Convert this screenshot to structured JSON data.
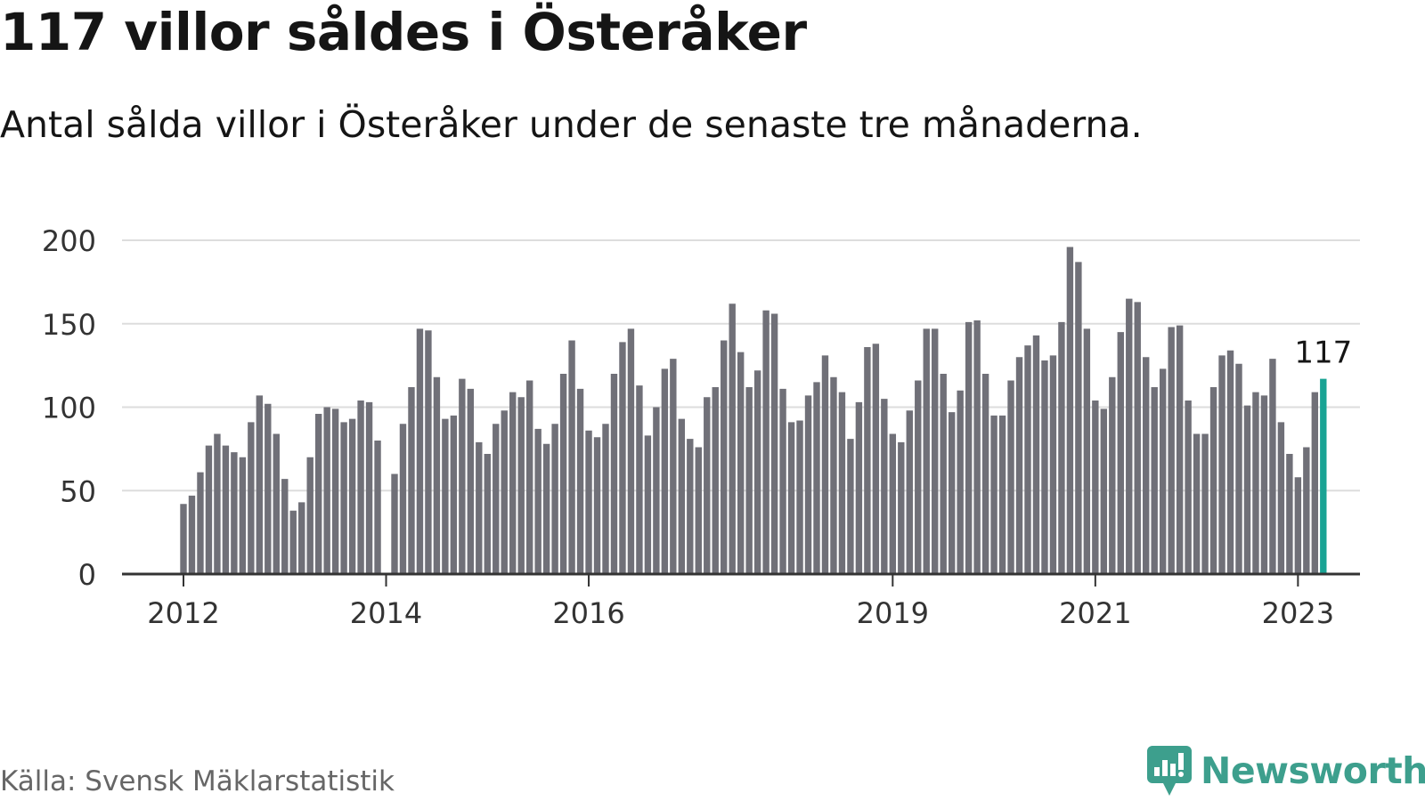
{
  "title": "117 villor såldes i Österåker",
  "subtitle": "Antal sålda villor i Österåker under de senaste tre månaderna.",
  "source": "Källa: Svensk Mäklarstatistik",
  "brand": "Newsworthy",
  "colors": {
    "bar": "#707078",
    "highlight": "#19a394",
    "grid": "#dddddd",
    "axis": "#333333",
    "brand": "#3d9f8d"
  },
  "chart_data": {
    "type": "bar",
    "title": "117 villor såldes i Österåker",
    "xlabel": "",
    "ylabel": "",
    "ylim": [
      0,
      200
    ],
    "yticks": [
      0,
      50,
      100,
      150,
      200
    ],
    "xtick_labels": [
      {
        "label": "2012",
        "index": 0
      },
      {
        "label": "2014",
        "index": 24
      },
      {
        "label": "2016",
        "index": 48
      },
      {
        "label": "2019",
        "index": 84
      },
      {
        "label": "2021",
        "index": 108
      },
      {
        "label": "2023",
        "index": 132
      }
    ],
    "highlight_label": "117",
    "values": [
      42,
      47,
      61,
      77,
      84,
      77,
      73,
      70,
      91,
      107,
      102,
      84,
      57,
      38,
      43,
      70,
      96,
      100,
      99,
      91,
      93,
      104,
      103,
      80,
      null,
      60,
      90,
      112,
      147,
      146,
      118,
      93,
      95,
      117,
      111,
      79,
      72,
      90,
      98,
      109,
      106,
      116,
      87,
      78,
      90,
      120,
      140,
      111,
      86,
      82,
      90,
      120,
      139,
      147,
      113,
      83,
      100,
      123,
      129,
      93,
      81,
      76,
      106,
      112,
      140,
      162,
      133,
      112,
      122,
      158,
      156,
      111,
      91,
      92,
      107,
      115,
      131,
      118,
      109,
      81,
      103,
      136,
      138,
      105,
      84,
      79,
      98,
      116,
      147,
      147,
      120,
      97,
      110,
      151,
      152,
      120,
      95,
      95,
      116,
      130,
      137,
      143,
      128,
      131,
      151,
      196,
      187,
      147,
      104,
      99,
      118,
      145,
      165,
      163,
      130,
      112,
      123,
      148,
      149,
      104,
      84,
      84,
      112,
      131,
      134,
      126,
      101,
      109,
      107,
      129,
      91,
      72,
      58,
      76,
      109,
      117
    ]
  }
}
